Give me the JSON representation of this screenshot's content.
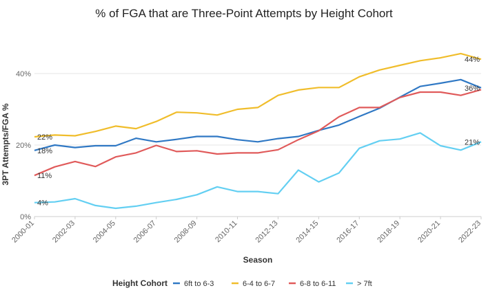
{
  "chart_data": {
    "type": "line",
    "title": "% of FGA that are Three-Point Attempts by Height Cohort",
    "xlabel": "Season",
    "ylabel": "3PT Attempts/FGA %",
    "ylim": [
      0,
      50
    ],
    "yticks": [
      "0%",
      "20%",
      "40%"
    ],
    "ytick_values": [
      0,
      20,
      40
    ],
    "grid": true,
    "legend_title": "Height Cohort",
    "legend_position": "bottom",
    "x": [
      "2000-01",
      "2001-02",
      "2002-03",
      "2003-04",
      "2004-05",
      "2005-06",
      "2006-07",
      "2007-08",
      "2008-09",
      "2009-10",
      "2010-11",
      "2011-12",
      "2012-13",
      "2013-14",
      "2014-15",
      "2015-16",
      "2016-17",
      "2017-18",
      "2018-19",
      "2019-20",
      "2020-21",
      "2021-22",
      "2022-23"
    ],
    "xtick_labels": [
      "2000-01",
      "2002-03",
      "2004-05",
      "2006-07",
      "2008-09",
      "2010-11",
      "2012-13",
      "2014-15",
      "2016-17",
      "2018-19",
      "2020-21",
      "2022-23"
    ],
    "series": [
      {
        "name": "6ft to 6-3",
        "color": "#2f78c4",
        "values": [
          18.5,
          20,
          19.3,
          19.8,
          19.8,
          21.9,
          20.9,
          21.6,
          22.4,
          22.4,
          21.5,
          20.9,
          21.8,
          22.4,
          24.1,
          25.6,
          28.0,
          30.3,
          33.4,
          36.4,
          37.3,
          38.3,
          36.0
        ],
        "end_label": "36%",
        "start_label": "18%"
      },
      {
        "name": "6-4 to 6-7",
        "color": "#f0bd2b",
        "values": [
          22.3,
          22.8,
          22.6,
          23.8,
          25.3,
          24.6,
          26.6,
          29.2,
          29.0,
          28.4,
          30.0,
          30.5,
          33.9,
          35.4,
          36.1,
          36.1,
          39.1,
          41.0,
          42.3,
          43.6,
          44.4,
          45.6,
          44.0
        ],
        "end_label": "44%",
        "start_label": "22%"
      },
      {
        "name": "6-8 to 6-11",
        "color": "#e05a5a",
        "values": [
          11.5,
          13.9,
          15.4,
          14.0,
          16.7,
          17.8,
          19.9,
          18.2,
          18.4,
          17.5,
          17.8,
          17.8,
          18.7,
          21.5,
          24.0,
          27.9,
          30.5,
          30.5,
          33.3,
          34.8,
          34.8,
          33.9,
          35.5
        ],
        "end_label": "",
        "start_label": "11%"
      },
      {
        "name": "> 7ft",
        "color": "#63cff2",
        "values": [
          3.9,
          4.1,
          5.0,
          3.1,
          2.3,
          2.9,
          3.9,
          4.8,
          6.1,
          8.3,
          7.0,
          7.0,
          6.4,
          13.0,
          9.7,
          12.2,
          19.1,
          21.2,
          21.7,
          23.4,
          19.8,
          18.6,
          20.9
        ],
        "end_label": "21%",
        "start_label": "4%"
      }
    ]
  }
}
